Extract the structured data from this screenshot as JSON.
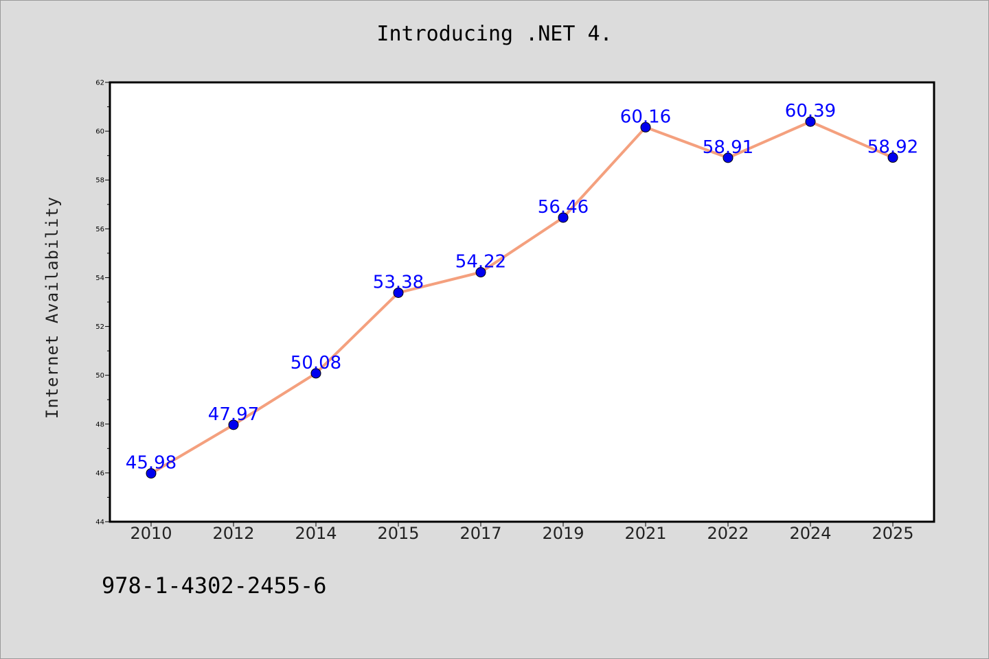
{
  "title": "Introducing .NET 4.",
  "footer_text": "978-1-4302-2455-6",
  "chart_data": {
    "type": "line",
    "title": "Introducing .NET 4.",
    "xlabel": "",
    "ylabel": "Internet Availability",
    "categories": [
      "2010",
      "2012",
      "2014",
      "2015",
      "2017",
      "2019",
      "2021",
      "2022",
      "2024",
      "2025"
    ],
    "series": [
      {
        "values": [
          45.98,
          47.97,
          50.08,
          53.38,
          54.22,
          56.46,
          60.16,
          58.91,
          60.39,
          58.92
        ]
      }
    ],
    "data_labels": [
      "45.98",
      "47.97",
      "50.08",
      "53.38",
      "54.22",
      "56.46",
      "60.16",
      "58.91",
      "60.39",
      "58.92"
    ],
    "ylim": [
      44,
      62
    ],
    "yticks": [
      44,
      46,
      48,
      50,
      52,
      54,
      56,
      58,
      60,
      62
    ],
    "grid": false,
    "legend": "none",
    "colors": {
      "line": "#f4a07e",
      "marker": "#0000ee",
      "label": "#0000ff",
      "background": "#dcdcdc",
      "plot_bg": "#ffffff"
    }
  }
}
